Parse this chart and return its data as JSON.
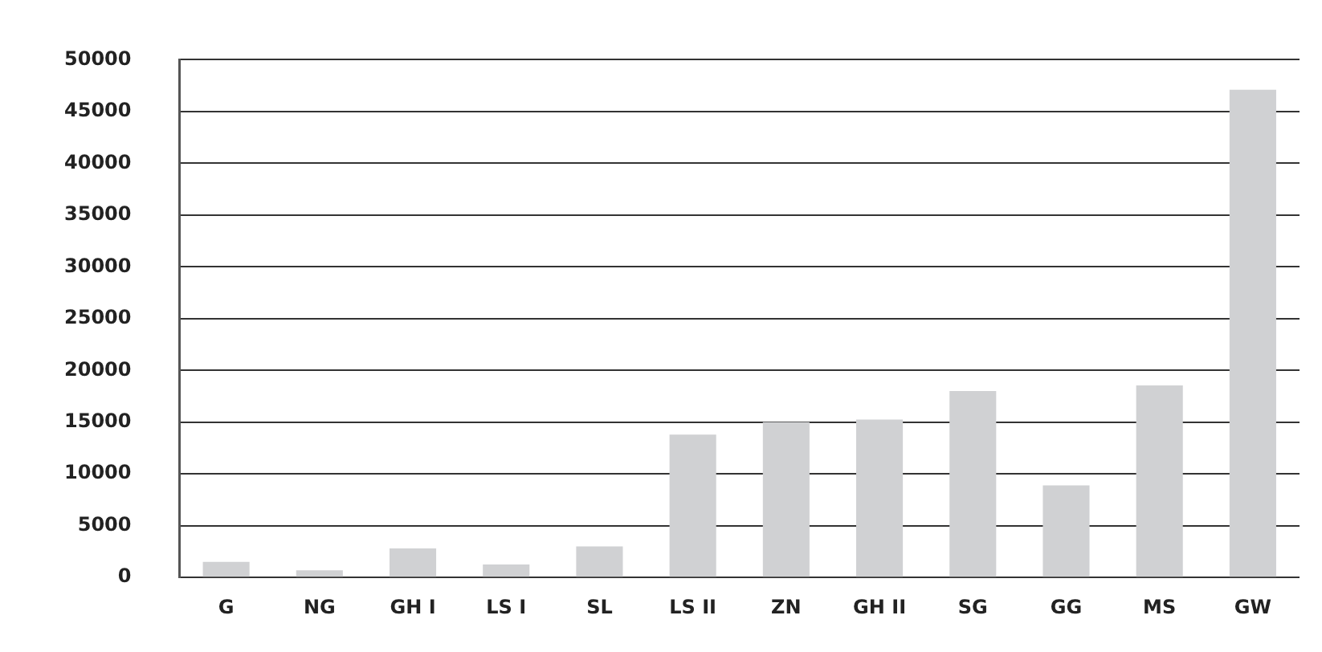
{
  "chart_data": {
    "type": "bar",
    "categories": [
      "G",
      "NG",
      "GH I",
      "LS I",
      "SL",
      "LS II",
      "ZN",
      "GH II",
      "SG",
      "GG",
      "MS",
      "GW"
    ],
    "values": [
      1500,
      700,
      2800,
      1250,
      3000,
      13800,
      15000,
      15250,
      18000,
      8900,
      18550,
      47100
    ],
    "color": "#d0d1d3",
    "ylim": [
      0,
      50000
    ],
    "yticks": [
      0,
      5000,
      10000,
      15000,
      20000,
      25000,
      30000,
      35000,
      40000,
      45000,
      50000
    ],
    "grid": "y",
    "legend": false
  }
}
